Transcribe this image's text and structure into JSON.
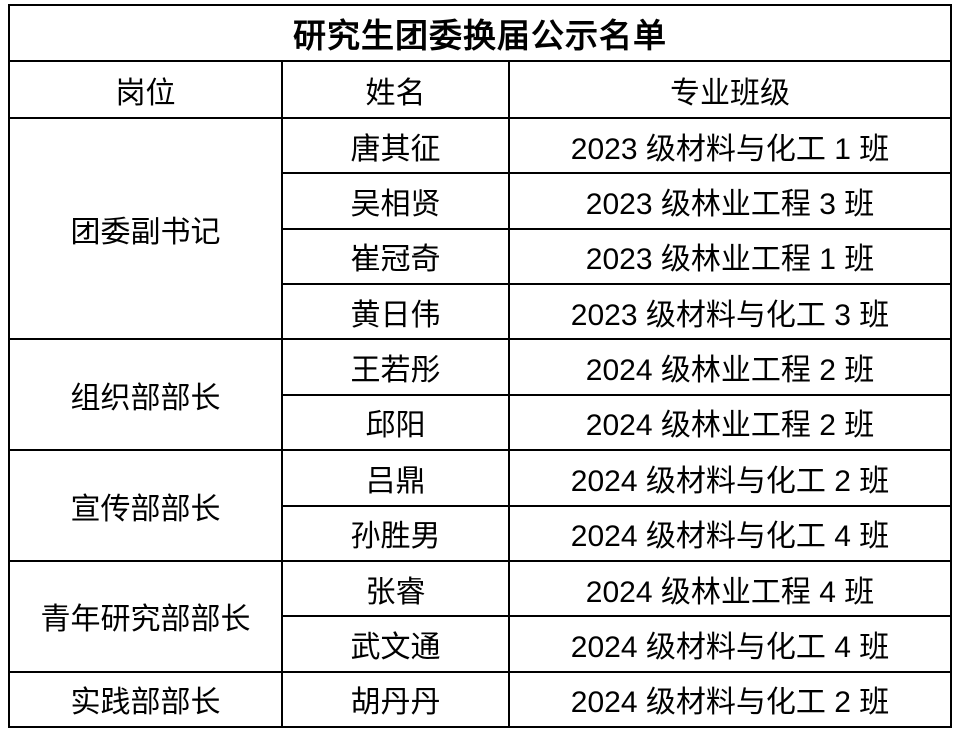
{
  "table": {
    "title": "研究生团委换届公示名单",
    "headers": [
      "岗位",
      "姓名",
      "专业班级"
    ]
  },
  "groups": [
    {
      "position": "团委副书记",
      "members": [
        {
          "name": "唐其征",
          "class": "2023 级材料与化工 1 班"
        },
        {
          "name": "吴相贤",
          "class": "2023 级林业工程 3 班"
        },
        {
          "name": "崔冠奇",
          "class": "2023 级林业工程 1 班"
        },
        {
          "name": "黄日伟",
          "class": "2023 级材料与化工 3 班"
        }
      ]
    },
    {
      "position": "组织部部长",
      "members": [
        {
          "name": "王若彤",
          "class": "2024 级林业工程 2 班"
        },
        {
          "name": "邱阳",
          "class": "2024 级林业工程 2 班"
        }
      ]
    },
    {
      "position": "宣传部部长",
      "members": [
        {
          "name": "吕鼎",
          "class": "2024 级材料与化工 2 班"
        },
        {
          "name": "孙胜男",
          "class": "2024 级材料与化工 4 班"
        }
      ]
    },
    {
      "position": "青年研究部部长",
      "members": [
        {
          "name": "张睿",
          "class": "2024 级林业工程 4 班"
        },
        {
          "name": "武文通",
          "class": "2024 级材料与化工 4 班"
        }
      ]
    },
    {
      "position": "实践部部长",
      "members": [
        {
          "name": "胡丹丹",
          "class": "2024 级材料与化工 2 班"
        }
      ]
    }
  ],
  "colors": {
    "background": "#ffffff",
    "border": "#000000",
    "text": "#000000"
  }
}
